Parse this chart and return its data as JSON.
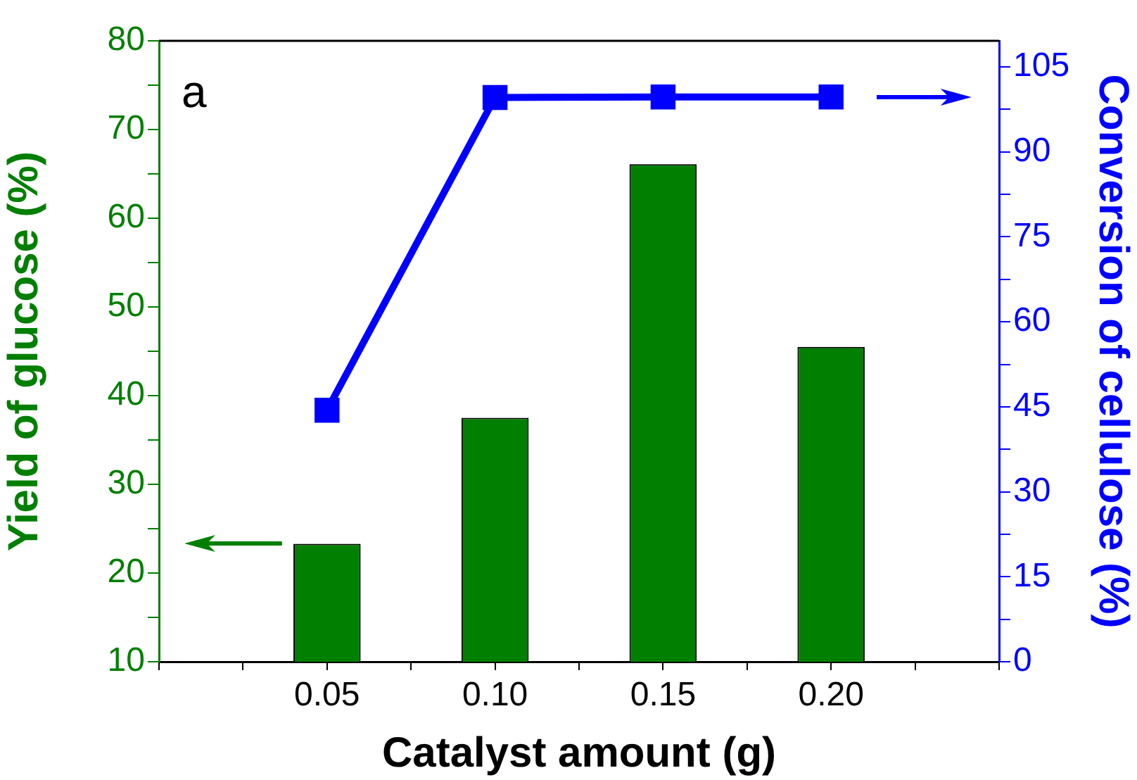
{
  "chart_data": {
    "type": "bar",
    "x": [
      0.05,
      0.1,
      0.15,
      0.2
    ],
    "xlim": [
      0,
      0.25
    ],
    "xticks": [
      {
        "value": 0,
        "label": null
      },
      {
        "value": 0.025,
        "label": null
      },
      0.05,
      {
        "value": 0.075,
        "label": null
      },
      {
        "value": 0.1,
        "label": "0.10"
      },
      {
        "value": 0.125,
        "label": null
      },
      0.15,
      {
        "value": 0.175,
        "label": null
      },
      {
        "value": 0.2,
        "label": "0.20"
      },
      {
        "value": 0.225,
        "label": null
      },
      {
        "value": 0.25,
        "label": null
      }
    ],
    "ylim": [
      10,
      80
    ],
    "yticks": [
      10,
      {
        "value": 15,
        "label": null
      },
      20,
      {
        "value": 25,
        "label": null
      },
      30,
      {
        "value": 35,
        "label": null
      },
      40,
      {
        "value": 45,
        "label": null
      },
      50,
      {
        "value": 55,
        "label": null
      },
      60,
      {
        "value": 65,
        "label": null
      },
      70,
      {
        "value": 75,
        "label": null
      },
      80
    ],
    "y2lim": [
      0,
      109.6
    ],
    "y2ticks": [
      0,
      {
        "value": 7.5,
        "label": null
      },
      15,
      {
        "value": 22.5,
        "label": null
      },
      30,
      {
        "value": 37.5,
        "label": null
      },
      45,
      {
        "value": 52.5,
        "label": null
      },
      60,
      {
        "value": 67.5,
        "label": null
      },
      75,
      {
        "value": 82.5,
        "label": null
      },
      90,
      {
        "value": 97.5,
        "label": null
      },
      105
    ],
    "xlabel": "Catalyst amount (g)",
    "ylabel": "Yield of glucose (%)",
    "y2label": "Conversion of cellulose (%)",
    "series": [
      {
        "color": "#007f00",
        "values": [
          23.3,
          37.5,
          66.1,
          45.5
        ]
      },
      {
        "type": "line",
        "axis": "y2",
        "color": "#0000ff",
        "values": [
          44.4,
          99.6,
          99.7,
          99.7
        ]
      }
    ],
    "marker": "square",
    "line_style": "solid",
    "annotations": [
      "a"
    ],
    "grid": false,
    "legend": false
  }
}
